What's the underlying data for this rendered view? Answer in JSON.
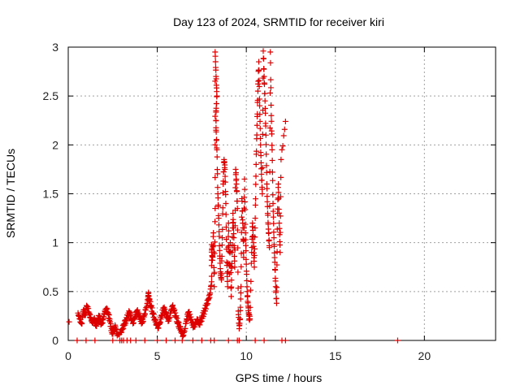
{
  "chart_data": {
    "type": "scatter",
    "title": "Day 123 of 2024, SRMTID for receiver kiri",
    "xlabel": "GPS time / hours",
    "ylabel": "SRMTID / TECUs",
    "xlim": [
      0,
      24
    ],
    "ylim": [
      0,
      3
    ],
    "xticks": [
      0,
      5,
      10,
      15,
      20
    ],
    "yticks": [
      0,
      0.5,
      1,
      1.5,
      2,
      2.5,
      3
    ],
    "xtick_labels": [
      "0",
      "5",
      "10",
      "15",
      "20"
    ],
    "ytick_labels": [
      "0",
      "0.5",
      "1",
      "1.5",
      "2",
      "2.5",
      "3"
    ],
    "grid": true,
    "marker": "+",
    "series": [
      {
        "name": "SRMTID",
        "color": "#dd0000",
        "points": [
          [
            0.05,
            0.19
          ],
          [
            0.55,
            0.28
          ],
          [
            0.65,
            0.22
          ],
          [
            0.75,
            0.17
          ],
          [
            0.85,
            0.31
          ],
          [
            0.95,
            0.26
          ],
          [
            1.05,
            0.35
          ],
          [
            1.15,
            0.29
          ],
          [
            1.25,
            0.23
          ],
          [
            1.35,
            0.18
          ],
          [
            1.45,
            0.22
          ],
          [
            1.55,
            0.15
          ],
          [
            1.65,
            0.2
          ],
          [
            1.75,
            0.25
          ],
          [
            1.85,
            0.17
          ],
          [
            1.95,
            0.21
          ],
          [
            2.05,
            0.3
          ],
          [
            2.15,
            0.33
          ],
          [
            2.25,
            0.27
          ],
          [
            2.35,
            0.19
          ],
          [
            2.45,
            0.08
          ],
          [
            2.55,
            0.1
          ],
          [
            2.65,
            0.14
          ],
          [
            2.75,
            0.05
          ],
          [
            2.95,
            0.08
          ],
          [
            3.05,
            0.12
          ],
          [
            3.15,
            0.17
          ],
          [
            3.25,
            0.2
          ],
          [
            3.35,
            0.26
          ],
          [
            3.45,
            0.29
          ],
          [
            3.55,
            0.22
          ],
          [
            3.65,
            0.18
          ],
          [
            3.75,
            0.25
          ],
          [
            3.85,
            0.3
          ],
          [
            3.95,
            0.27
          ],
          [
            4.05,
            0.22
          ],
          [
            4.15,
            0.18
          ],
          [
            4.25,
            0.24
          ],
          [
            4.35,
            0.31
          ],
          [
            4.45,
            0.38
          ],
          [
            4.5,
            0.48
          ],
          [
            4.55,
            0.41
          ],
          [
            4.65,
            0.35
          ],
          [
            4.75,
            0.28
          ],
          [
            4.85,
            0.22
          ],
          [
            4.95,
            0.17
          ],
          [
            5.05,
            0.13
          ],
          [
            5.15,
            0.19
          ],
          [
            5.25,
            0.26
          ],
          [
            5.35,
            0.33
          ],
          [
            5.45,
            0.29
          ],
          [
            5.55,
            0.24
          ],
          [
            5.65,
            0.2
          ],
          [
            5.75,
            0.28
          ],
          [
            5.85,
            0.35
          ],
          [
            5.95,
            0.3
          ],
          [
            6.05,
            0.24
          ],
          [
            6.15,
            0.18
          ],
          [
            6.25,
            0.14
          ],
          [
            6.35,
            0.1
          ],
          [
            6.45,
            0.05
          ],
          [
            6.55,
            0.12
          ],
          [
            6.65,
            0.22
          ],
          [
            6.75,
            0.29
          ],
          [
            6.85,
            0.24
          ],
          [
            6.95,
            0.18
          ],
          [
            7.05,
            0.14
          ],
          [
            7.15,
            0.17
          ],
          [
            7.25,
            0.21
          ],
          [
            7.35,
            0.16
          ],
          [
            7.45,
            0.2
          ],
          [
            7.55,
            0.25
          ],
          [
            7.65,
            0.3
          ],
          [
            7.75,
            0.36
          ],
          [
            7.85,
            0.41
          ],
          [
            7.95,
            0.47
          ],
          [
            8.05,
            0.6
          ],
          [
            8.05,
            0.98
          ],
          [
            8.1,
            0.82
          ],
          [
            8.15,
            1.1
          ],
          [
            8.2,
            0.55
          ],
          [
            8.25,
            1.35
          ],
          [
            8.25,
            2.95
          ],
          [
            8.3,
            2.7
          ],
          [
            8.35,
            2.5
          ],
          [
            8.3,
            2.35
          ],
          [
            8.3,
            2.15
          ],
          [
            8.35,
            1.95
          ],
          [
            8.4,
            1.5
          ],
          [
            8.45,
            1.25
          ],
          [
            8.5,
            0.92
          ],
          [
            8.55,
            0.7
          ],
          [
            8.6,
            0.62
          ],
          [
            8.65,
            1.05
          ],
          [
            8.7,
            1.6
          ],
          [
            8.75,
            1.85
          ],
          [
            8.8,
            1.75
          ],
          [
            8.85,
            1.4
          ],
          [
            8.9,
            0.8
          ],
          [
            8.95,
            0.55
          ],
          [
            9.0,
            1.2
          ],
          [
            9.05,
            0.68
          ],
          [
            9.1,
            1.0
          ],
          [
            9.15,
            0.45
          ],
          [
            9.2,
            0.9
          ],
          [
            9.25,
            1.3
          ],
          [
            9.3,
            1.05
          ],
          [
            9.35,
            0.75
          ],
          [
            9.4,
            1.75
          ],
          [
            9.45,
            1.6
          ],
          [
            9.5,
            1.35
          ],
          [
            9.55,
            0.3
          ],
          [
            9.6,
            0.12
          ],
          [
            9.65,
            0.22
          ],
          [
            9.7,
            0.55
          ],
          [
            9.75,
            1.45
          ],
          [
            9.8,
            1.2
          ],
          [
            9.85,
            0.85
          ],
          [
            9.9,
            1.65
          ],
          [
            9.95,
            1.1
          ],
          [
            10.0,
            0.78
          ],
          [
            10.05,
            0.5
          ],
          [
            10.1,
            0.35
          ],
          [
            10.15,
            0.25
          ],
          [
            10.2,
            0.22
          ],
          [
            10.3,
            0.9
          ],
          [
            10.35,
            1.2
          ],
          [
            10.4,
            1.0
          ],
          [
            10.45,
            0.75
          ],
          [
            10.5,
            1.25
          ],
          [
            10.55,
            1.8
          ],
          [
            10.6,
            2.2
          ],
          [
            10.65,
            2.55
          ],
          [
            10.7,
            2.85
          ],
          [
            10.75,
            2.4
          ],
          [
            10.8,
            2.0
          ],
          [
            10.85,
            1.7
          ],
          [
            10.9,
            1.5
          ],
          [
            10.95,
            2.96
          ],
          [
            11.0,
            2.7
          ],
          [
            11.05,
            2.45
          ],
          [
            11.1,
            2.1
          ],
          [
            11.15,
            1.6
          ],
          [
            11.2,
            1.3
          ],
          [
            11.25,
            1.1
          ],
          [
            11.3,
            0.95
          ],
          [
            11.35,
            2.95
          ],
          [
            11.4,
            2.3
          ],
          [
            11.45,
            1.95
          ],
          [
            11.5,
            1.4
          ],
          [
            11.55,
            1.05
          ],
          [
            11.6,
            0.8
          ],
          [
            11.65,
            0.55
          ],
          [
            11.7,
            0.38
          ],
          [
            11.75,
            1.3
          ],
          [
            11.8,
            1.6
          ],
          [
            11.85,
            1.2
          ],
          [
            11.9,
            0.9
          ],
          [
            11.95,
            1.85
          ],
          [
            12.2,
            2.24
          ]
        ],
        "zero_points_x": [
          0.5,
          1.0,
          1.5,
          2.5,
          2.9,
          3.0,
          3.1,
          3.3,
          3.5,
          3.8,
          4.3,
          5.0,
          5.5,
          6.0,
          6.4,
          7.0,
          7.5,
          8.0,
          8.2,
          9.0,
          9.5,
          9.6,
          10.5,
          11.0,
          12.0,
          12.2,
          18.5
        ]
      }
    ]
  }
}
